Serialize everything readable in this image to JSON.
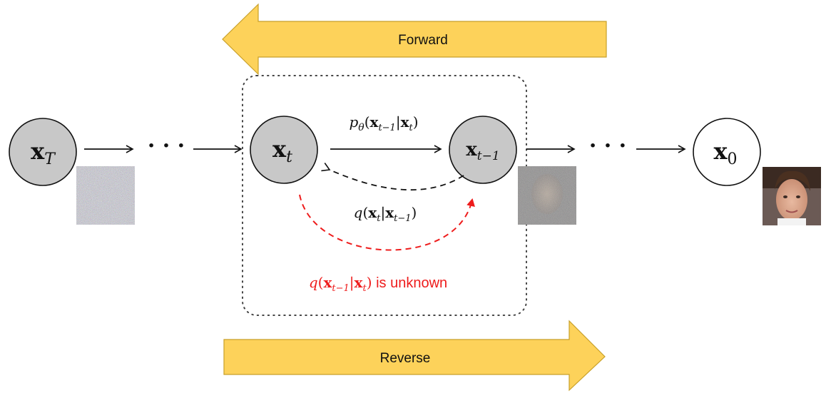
{
  "arrows": {
    "forward_label": "Forward",
    "reverse_label": "Reverse"
  },
  "nodes": {
    "x_T": {
      "base": "x",
      "sub": "T"
    },
    "x_t": {
      "base": "x",
      "sub": "t"
    },
    "x_t_minus_1": {
      "base": "x",
      "sub": "t−1"
    },
    "x_0": {
      "base": "x",
      "sub": "0"
    }
  },
  "ellipsis": "· · ·",
  "edges": {
    "p_theta": {
      "func": "p",
      "func_sub": "θ",
      "open": "(",
      "a": "x",
      "a_sub": "t−1",
      "bar": "|",
      "b": "x",
      "b_sub": "t",
      "close": ")"
    },
    "q_forward": {
      "func": "q",
      "open": "(",
      "a": "x",
      "a_sub": "t",
      "bar": "|",
      "b": "x",
      "b_sub": "t−1",
      "close": ")"
    },
    "q_reverse": {
      "func": "q",
      "open": "(",
      "a": "x",
      "a_sub": "t−1",
      "bar": "|",
      "b": "x",
      "b_sub": "t",
      "close": ")",
      "suffix": " is unknown"
    }
  },
  "colors": {
    "arrow_fill": "#FDD25A",
    "arrow_stroke": "#C8A02A",
    "node_gray": "#C8C8C8",
    "node_white": "#FFFFFF",
    "red": "#EE1C1C",
    "black": "#111111"
  },
  "images": {
    "noise_T": "pure-noise-image",
    "noise_t_minus_1": "noisy-face-image",
    "clean_x0": "face-photo"
  }
}
